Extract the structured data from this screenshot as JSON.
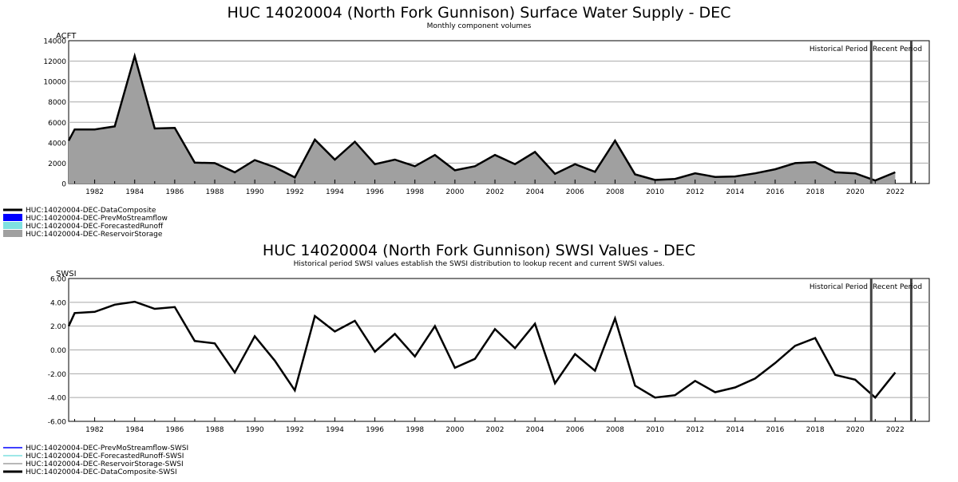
{
  "chart_data": [
    {
      "type": "area",
      "title": "HUC 14020004 (North Fork Gunnison) Surface Water Supply - DEC",
      "subtitle": "Monthly component volumes",
      "ylabel": "ACFT",
      "xlabel": "",
      "ylim": [
        0,
        14000
      ],
      "xlim": [
        1980.7,
        2023.7
      ],
      "yticks": [
        0,
        2000,
        4000,
        6000,
        8000,
        10000,
        12000,
        14000
      ],
      "ytick_labels": [
        "0",
        "2000",
        "4000",
        "6000",
        "8000",
        "10000",
        "12000",
        "14000"
      ],
      "xticks": [
        1982,
        1984,
        1986,
        1988,
        1990,
        1992,
        1994,
        1996,
        1998,
        2000,
        2002,
        2004,
        2006,
        2008,
        2010,
        2012,
        2014,
        2016,
        2018,
        2020,
        2022
      ],
      "grid": true,
      "period_markers": [
        2020.8,
        2022.8
      ],
      "period_labels": [
        "Historical Period",
        "Recent Period"
      ],
      "legend": {
        "placement": "below-left",
        "entries": [
          {
            "name": "HUC:14020004-DEC-DataComposite",
            "color": "#000000",
            "swatch": "line"
          },
          {
            "name": "HUC:14020004-DEC-PrevMoStreamflow",
            "color": "#0000ff",
            "swatch": "box"
          },
          {
            "name": "HUC:14020004-DEC-ForecastedRunoff",
            "color": "#7fe0e0",
            "swatch": "box"
          },
          {
            "name": "HUC:14020004-DEC-ReservoirStorage",
            "color": "#a0a0a0",
            "swatch": "box"
          }
        ]
      },
      "x": [
        1980.7,
        1981,
        1982,
        1983,
        1984,
        1985,
        1986,
        1987,
        1988,
        1989,
        1990,
        1991,
        1992,
        1993,
        1994,
        1995,
        1996,
        1997,
        1998,
        1999,
        2000,
        2001,
        2002,
        2003,
        2004,
        2005,
        2006,
        2007,
        2008,
        2009,
        2010,
        2011,
        2012,
        2013,
        2014,
        2015,
        2016,
        2017,
        2018,
        2019,
        2020,
        2021,
        2022
      ],
      "series": [
        {
          "name": "HUC:14020004-DEC-ReservoirStorage",
          "color": "#a0a0a0",
          "values": [
            4200,
            5300,
            5300,
            5600,
            12500,
            5400,
            5450,
            2050,
            2000,
            1100,
            2300,
            1600,
            600,
            4300,
            2350,
            4100,
            1900,
            2350,
            1700,
            2800,
            1300,
            1700,
            2800,
            1900,
            3100,
            950,
            1900,
            1150,
            4200,
            900,
            350,
            450,
            1000,
            650,
            700,
            1000,
            1400,
            2000,
            2100,
            1100,
            1000,
            300,
            1100
          ]
        },
        {
          "name": "HUC:14020004-DEC-DataComposite",
          "color": "#000000",
          "values": [
            4200,
            5300,
            5300,
            5600,
            12500,
            5400,
            5450,
            2050,
            2000,
            1100,
            2300,
            1600,
            600,
            4300,
            2350,
            4100,
            1900,
            2350,
            1700,
            2800,
            1300,
            1700,
            2800,
            1900,
            3100,
            950,
            1900,
            1150,
            4200,
            900,
            350,
            450,
            1000,
            650,
            700,
            1000,
            1400,
            2000,
            2100,
            1100,
            1000,
            300,
            1100
          ]
        }
      ]
    },
    {
      "type": "line",
      "title": "HUC 14020004 (North Fork Gunnison) SWSI Values - DEC",
      "subtitle": "Historical period SWSI values establish the SWSI distribution to lookup recent and current SWSI values.",
      "ylabel": "SWSI",
      "xlabel": "",
      "ylim": [
        -6,
        6
      ],
      "xlim": [
        1980.7,
        2023.7
      ],
      "yticks": [
        -6,
        -4,
        -2,
        0,
        2,
        4,
        6
      ],
      "ytick_labels": [
        "-6.00",
        "-4.00",
        "-2.00",
        "0.00",
        "2.00",
        "4.00",
        "6.00"
      ],
      "xticks": [
        1982,
        1984,
        1986,
        1988,
        1990,
        1992,
        1994,
        1996,
        1998,
        2000,
        2002,
        2004,
        2006,
        2008,
        2010,
        2012,
        2014,
        2016,
        2018,
        2020,
        2022
      ],
      "grid": true,
      "period_markers": [
        2020.8,
        2022.8
      ],
      "period_labels": [
        "Historical Period",
        "Recent Period"
      ],
      "legend": {
        "placement": "below-left",
        "entries": [
          {
            "name": "HUC:14020004-DEC-PrevMoStreamflow-SWSI",
            "color": "#0000ff",
            "swatch": "line"
          },
          {
            "name": "HUC:14020004-DEC-ForecastedRunoff-SWSI",
            "color": "#7fe0e0",
            "swatch": "line"
          },
          {
            "name": "HUC:14020004-DEC-ReservoirStorage-SWSI",
            "color": "#a0a0a0",
            "swatch": "line"
          },
          {
            "name": "HUC:14020004-DEC-DataComposite-SWSI",
            "color": "#000000",
            "swatch": "line"
          }
        ]
      },
      "x": [
        1980.7,
        1981,
        1982,
        1983,
        1984,
        1985,
        1986,
        1987,
        1988,
        1989,
        1990,
        1991,
        1992,
        1993,
        1994,
        1995,
        1996,
        1997,
        1998,
        1999,
        2000,
        2001,
        2002,
        2003,
        2004,
        2005,
        2006,
        2007,
        2008,
        2009,
        2010,
        2011,
        2012,
        2013,
        2014,
        2015,
        2016,
        2017,
        2018,
        2019,
        2020,
        2021,
        2022
      ],
      "series": [
        {
          "name": "HUC:14020004-DEC-DataComposite-SWSI",
          "color": "#000000",
          "values": [
            2.0,
            3.1,
            3.2,
            3.8,
            4.05,
            3.45,
            3.6,
            0.75,
            0.55,
            -1.9,
            1.15,
            -0.9,
            -3.4,
            2.85,
            1.55,
            2.45,
            -0.15,
            1.35,
            -0.55,
            2.0,
            -1.5,
            -0.75,
            1.75,
            0.15,
            2.2,
            -2.8,
            -0.35,
            -1.75,
            2.65,
            -3.0,
            -4.0,
            -3.8,
            -2.6,
            -3.55,
            -3.15,
            -2.4,
            -1.1,
            0.35,
            1.0,
            -2.1,
            -2.5,
            -4.0,
            -1.9
          ]
        }
      ]
    }
  ]
}
